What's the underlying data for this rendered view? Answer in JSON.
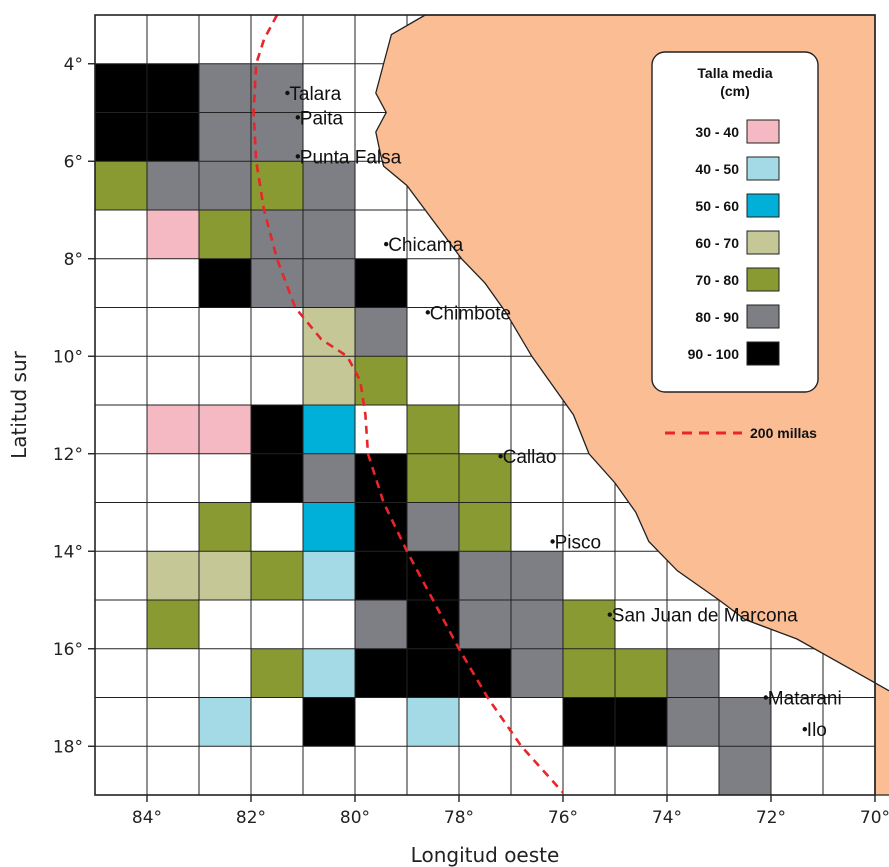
{
  "axes": {
    "xlabel": "Longitud oeste",
    "ylabel": "Latitud sur",
    "x_ticks": [
      "84°",
      "82°",
      "80°",
      "78°",
      "76°",
      "74°",
      "72°",
      "70°"
    ],
    "y_ticks": [
      "4°",
      "6°",
      "8°",
      "10°",
      "12°",
      "14°",
      "16°",
      "18°"
    ]
  },
  "cities": [
    {
      "name": "Talara",
      "lon": 81.3,
      "lat": 4.6
    },
    {
      "name": "Paita",
      "lon": 81.1,
      "lat": 5.1
    },
    {
      "name": "Punta Falsa",
      "lon": 81.1,
      "lat": 5.9
    },
    {
      "name": "Chicama",
      "lon": 79.4,
      "lat": 7.7
    },
    {
      "name": "Chimbote",
      "lon": 78.6,
      "lat": 9.1
    },
    {
      "name": "Callao",
      "lon": 77.2,
      "lat": 12.05
    },
    {
      "name": "Pisco",
      "lon": 76.2,
      "lat": 13.8
    },
    {
      "name": "San Juan de Marcona",
      "lon": 75.1,
      "lat": 15.3
    },
    {
      "name": "Matarani",
      "lon": 72.1,
      "lat": 17.0
    },
    {
      "name": "Ilo",
      "lon": 71.35,
      "lat": 17.65
    }
  ],
  "legend": {
    "title_line1": "Talla media",
    "title_line2": "(cm)",
    "classes": [
      {
        "label": "30 - 40",
        "color": "#f4b9c2"
      },
      {
        "label": "40 - 50",
        "color": "#a4dae6"
      },
      {
        "label": "50 - 60",
        "color": "#00b0d8"
      },
      {
        "label": "60 - 70",
        "color": "#c5c896"
      },
      {
        "label": "70 - 80",
        "color": "#8a9a32"
      },
      {
        "label": "80 - 90",
        "color": "#7d7f84"
      },
      {
        "label": "90 - 100",
        "color": "#000000"
      }
    ],
    "line_label": "200 millas",
    "line_color": "#e8262a"
  },
  "colors": {
    "land": "#fbbd94",
    "coast": "#222222",
    "grid": "#222222"
  },
  "chart_data": {
    "type": "heatmap",
    "cell_size_deg": 1,
    "xlim": [
      85,
      70
    ],
    "ylim": [
      3,
      19
    ],
    "cells": [
      {
        "lon": 84,
        "lat": 4,
        "c": 6
      },
      {
        "lon": 83,
        "lat": 4,
        "c": 6
      },
      {
        "lon": 82,
        "lat": 4,
        "c": 5
      },
      {
        "lon": 81,
        "lat": 4,
        "c": 5
      },
      {
        "lon": 84,
        "lat": 5,
        "c": 6
      },
      {
        "lon": 83,
        "lat": 5,
        "c": 6
      },
      {
        "lon": 82,
        "lat": 5,
        "c": 5
      },
      {
        "lon": 81,
        "lat": 5,
        "c": 5
      },
      {
        "lon": 84,
        "lat": 6,
        "c": 4
      },
      {
        "lon": 83,
        "lat": 6,
        "c": 5
      },
      {
        "lon": 82,
        "lat": 6,
        "c": 5
      },
      {
        "lon": 81,
        "lat": 6,
        "c": 4
      },
      {
        "lon": 80,
        "lat": 6,
        "c": 5
      },
      {
        "lon": 83,
        "lat": 7,
        "c": 0
      },
      {
        "lon": 82,
        "lat": 7,
        "c": 4
      },
      {
        "lon": 81,
        "lat": 7,
        "c": 5
      },
      {
        "lon": 80,
        "lat": 7,
        "c": 5
      },
      {
        "lon": 82,
        "lat": 8,
        "c": 6
      },
      {
        "lon": 81,
        "lat": 8,
        "c": 5
      },
      {
        "lon": 80,
        "lat": 8,
        "c": 5
      },
      {
        "lon": 79,
        "lat": 8,
        "c": 6
      },
      {
        "lon": 80,
        "lat": 9,
        "c": 3
      },
      {
        "lon": 79,
        "lat": 9,
        "c": 5
      },
      {
        "lon": 80,
        "lat": 10,
        "c": 3
      },
      {
        "lon": 79,
        "lat": 10,
        "c": 4
      },
      {
        "lon": 83,
        "lat": 11,
        "c": 0
      },
      {
        "lon": 82,
        "lat": 11,
        "c": 0
      },
      {
        "lon": 81,
        "lat": 11,
        "c": 6
      },
      {
        "lon": 80,
        "lat": 11,
        "c": 2
      },
      {
        "lon": 78,
        "lat": 11,
        "c": 4
      },
      {
        "lon": 81,
        "lat": 12,
        "c": 6
      },
      {
        "lon": 80,
        "lat": 12,
        "c": 5
      },
      {
        "lon": 79,
        "lat": 12,
        "c": 6
      },
      {
        "lon": 78,
        "lat": 12,
        "c": 4
      },
      {
        "lon": 77,
        "lat": 12,
        "c": 4
      },
      {
        "lon": 82,
        "lat": 13,
        "c": 4
      },
      {
        "lon": 80,
        "lat": 13,
        "c": 2
      },
      {
        "lon": 79,
        "lat": 13,
        "c": 6
      },
      {
        "lon": 78,
        "lat": 13,
        "c": 5
      },
      {
        "lon": 77,
        "lat": 13,
        "c": 4
      },
      {
        "lon": 83,
        "lat": 14,
        "c": 3
      },
      {
        "lon": 82,
        "lat": 14,
        "c": 3
      },
      {
        "lon": 81,
        "lat": 14,
        "c": 4
      },
      {
        "lon": 80,
        "lat": 14,
        "c": 1
      },
      {
        "lon": 79,
        "lat": 14,
        "c": 6
      },
      {
        "lon": 78,
        "lat": 14,
        "c": 6
      },
      {
        "lon": 77,
        "lat": 14,
        "c": 5
      },
      {
        "lon": 76,
        "lat": 14,
        "c": 5
      },
      {
        "lon": 83,
        "lat": 15,
        "c": 4
      },
      {
        "lon": 79,
        "lat": 15,
        "c": 5
      },
      {
        "lon": 78,
        "lat": 15,
        "c": 6
      },
      {
        "lon": 77,
        "lat": 15,
        "c": 5
      },
      {
        "lon": 76,
        "lat": 15,
        "c": 5
      },
      {
        "lon": 75,
        "lat": 15,
        "c": 4
      },
      {
        "lon": 81,
        "lat": 16,
        "c": 4
      },
      {
        "lon": 80,
        "lat": 16,
        "c": 1
      },
      {
        "lon": 79,
        "lat": 16,
        "c": 6
      },
      {
        "lon": 78,
        "lat": 16,
        "c": 6
      },
      {
        "lon": 77,
        "lat": 16,
        "c": 6
      },
      {
        "lon": 76,
        "lat": 16,
        "c": 5
      },
      {
        "lon": 75,
        "lat": 16,
        "c": 4
      },
      {
        "lon": 74,
        "lat": 16,
        "c": 4
      },
      {
        "lon": 73,
        "lat": 16,
        "c": 5
      },
      {
        "lon": 82,
        "lat": 17,
        "c": 1
      },
      {
        "lon": 80,
        "lat": 17,
        "c": 6
      },
      {
        "lon": 78,
        "lat": 17,
        "c": 1
      },
      {
        "lon": 75,
        "lat": 17,
        "c": 6
      },
      {
        "lon": 74,
        "lat": 17,
        "c": 6
      },
      {
        "lon": 73,
        "lat": 17,
        "c": 5
      },
      {
        "lon": 72,
        "lat": 17,
        "c": 5
      },
      {
        "lon": 72,
        "lat": 18,
        "c": 5
      }
    ],
    "line_200_millas": [
      [
        81.5,
        3.0
      ],
      [
        81.75,
        3.5
      ],
      [
        81.9,
        4.0
      ],
      [
        81.95,
        5.0
      ],
      [
        81.9,
        6.0
      ],
      [
        81.75,
        7.0
      ],
      [
        81.5,
        8.0
      ],
      [
        81.15,
        9.0
      ],
      [
        80.65,
        9.65
      ],
      [
        80.15,
        10.0
      ],
      [
        79.9,
        10.5
      ],
      [
        79.8,
        11.2
      ],
      [
        79.75,
        12.0
      ],
      [
        79.45,
        13.0
      ],
      [
        79.0,
        14.0
      ],
      [
        78.5,
        15.0
      ],
      [
        78.0,
        16.0
      ],
      [
        77.45,
        17.0
      ],
      [
        76.8,
        18.0
      ],
      [
        76.0,
        18.95
      ]
    ],
    "coast": [
      [
        78.65,
        3.0
      ],
      [
        79.3,
        3.4
      ],
      [
        79.5,
        4.2
      ],
      [
        79.6,
        4.6
      ],
      [
        79.4,
        5.0
      ],
      [
        79.6,
        5.4
      ],
      [
        79.5,
        5.9
      ],
      [
        79.45,
        6.1
      ],
      [
        79.0,
        6.5
      ],
      [
        78.65,
        7.0
      ],
      [
        78.3,
        7.5
      ],
      [
        77.95,
        8.0
      ],
      [
        77.5,
        8.5
      ],
      [
        77.1,
        9.1
      ],
      [
        76.6,
        10.0
      ],
      [
        76.2,
        10.6
      ],
      [
        75.8,
        11.2
      ],
      [
        75.5,
        12.0
      ],
      [
        75.0,
        12.6
      ],
      [
        74.6,
        13.2
      ],
      [
        74.35,
        13.8
      ],
      [
        73.8,
        14.4
      ],
      [
        73.0,
        15.0
      ],
      [
        72.5,
        15.4
      ],
      [
        71.5,
        15.8
      ],
      [
        70.5,
        16.4
      ],
      [
        69.5,
        17.0
      ],
      [
        68.8,
        17.6
      ],
      [
        67.9,
        18.3
      ],
      [
        67.7,
        19.0
      ]
    ]
  }
}
